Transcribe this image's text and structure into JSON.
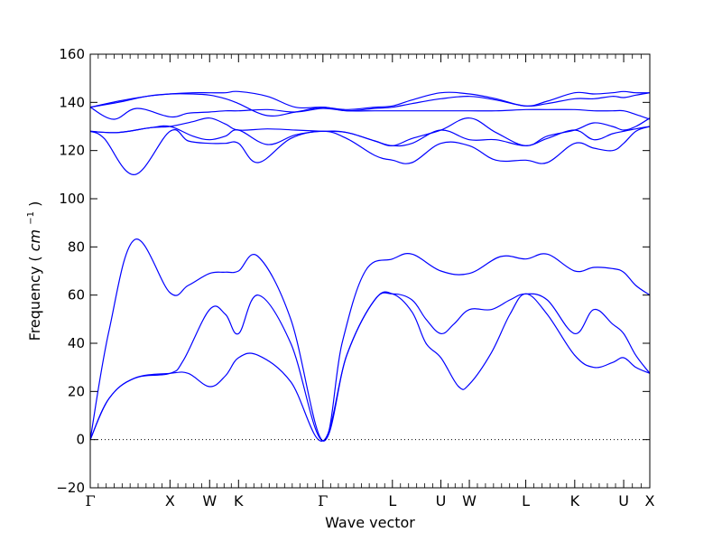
{
  "chart_data": {
    "type": "line",
    "title": "",
    "xlabel": "Wave vector",
    "ylabel": "Frequency",
    "ylabel_unit": "cm",
    "ylabel_exponent": "−1",
    "ylim": [
      -20,
      160
    ],
    "yticks": [
      -20,
      0,
      20,
      40,
      60,
      80,
      100,
      120,
      140,
      160
    ],
    "xlim": [
      0,
      12.0
    ],
    "high_symmetry_points": [
      {
        "label": "Γ",
        "x": 0
      },
      {
        "label": "X",
        "x": 1.71
      },
      {
        "label": "W",
        "x": 2.56
      },
      {
        "label": "K",
        "x": 3.18
      },
      {
        "label": "Γ",
        "x": 4.99
      },
      {
        "label": "L",
        "x": 6.48
      },
      {
        "label": "U",
        "x": 7.52
      },
      {
        "label": "W",
        "x": 8.13
      },
      {
        "label": "L",
        "x": 9.34
      },
      {
        "label": "K",
        "x": 10.39
      },
      {
        "label": "U",
        "x": 11.44
      },
      {
        "label": "X",
        "x": 12.0
      }
    ],
    "zero_line": true,
    "line_color": "#0000ff",
    "series": [
      {
        "x": [
          0,
          0.4,
          0.95,
          1.71,
          2.1,
          2.56,
          2.9,
          3.18,
          3.6,
          4.3,
          4.99,
          5.5,
          6.1,
          6.48,
          6.9,
          7.2,
          7.52,
          7.9,
          8.13,
          8.6,
          9.0,
          9.34,
          9.8,
          10.39,
          10.8,
          11.2,
          11.44,
          11.7,
          12.0
        ],
        "y": [
          0,
          17,
          25.5,
          27.5,
          27.5,
          22,
          26.5,
          34,
          35,
          24,
          -0.5,
          35,
          58,
          60.5,
          53,
          40,
          34,
          22,
          23,
          36,
          52,
          60.5,
          52,
          35,
          30,
          32,
          34,
          30,
          27.5
        ]
      },
      {
        "x": [
          0,
          0.4,
          0.95,
          1.71,
          2.0,
          2.56,
          2.9,
          3.18,
          3.6,
          4.3,
          4.99,
          5.5,
          6.1,
          6.48,
          6.9,
          7.2,
          7.52,
          7.8,
          8.13,
          8.6,
          9.0,
          9.34,
          9.8,
          10.39,
          10.8,
          11.2,
          11.44,
          11.7,
          12.0
        ],
        "y": [
          0,
          17,
          25.5,
          27.5,
          33,
          54,
          52,
          44,
          60,
          40,
          -0.5,
          35,
          58,
          60.5,
          58,
          50,
          44,
          48,
          54,
          54,
          58,
          60.5,
          58,
          44,
          54,
          48,
          44,
          35,
          27.5
        ]
      },
      {
        "x": [
          0,
          0.4,
          0.95,
          1.71,
          2.1,
          2.56,
          2.9,
          3.18,
          3.6,
          4.3,
          4.99,
          5.4,
          5.9,
          6.48,
          6.9,
          7.52,
          8.13,
          8.8,
          9.34,
          9.8,
          10.39,
          10.8,
          11.2,
          11.44,
          11.7,
          12.0
        ],
        "y": [
          0,
          45,
          83,
          61,
          64,
          69,
          69.5,
          70,
          76,
          50,
          -0.5,
          40,
          70,
          75,
          77,
          70,
          69,
          76,
          75,
          77,
          70,
          71.5,
          71,
          69.5,
          64,
          60
        ]
      },
      {
        "x": [
          0,
          0.3,
          0.95,
          1.71,
          2.1,
          2.56,
          2.9,
          3.18,
          3.6,
          4.3,
          4.99,
          5.5,
          6.1,
          6.48,
          6.9,
          7.52,
          8.13,
          8.7,
          9.34,
          9.8,
          10.39,
          10.8,
          11.2,
          11.44,
          11.7,
          12.0
        ],
        "y": [
          128,
          125,
          110,
          128,
          124,
          123,
          123,
          123,
          115,
          125,
          128,
          125,
          118,
          116,
          115,
          123,
          122,
          116,
          116,
          115,
          123,
          121,
          120,
          123,
          128,
          130
        ]
      },
      {
        "x": [
          0,
          0.6,
          1.3,
          1.71,
          2.2,
          2.56,
          2.9,
          3.18,
          3.8,
          4.4,
          4.99,
          5.5,
          6.1,
          6.48,
          6.9,
          7.52,
          8.13,
          8.7,
          9.34,
          9.8,
          10.39,
          10.8,
          11.2,
          11.44,
          11.7,
          12.0
        ],
        "y": [
          128,
          127.5,
          129.5,
          130,
          126,
          124.5,
          126,
          128.5,
          122.5,
          126.5,
          128,
          127.5,
          124,
          122,
          123,
          128.5,
          124.5,
          124.5,
          122,
          125,
          128.5,
          124.5,
          127,
          128,
          129,
          130
        ]
      },
      {
        "x": [
          0,
          0.6,
          1.3,
          1.71,
          2.2,
          2.56,
          2.9,
          3.18,
          3.8,
          4.4,
          4.99,
          5.5,
          6.1,
          6.48,
          6.9,
          7.52,
          8.13,
          8.7,
          9.34,
          9.8,
          10.39,
          10.8,
          11.2,
          11.44,
          11.7,
          12.0
        ],
        "y": [
          128,
          127.5,
          129.5,
          130,
          132,
          133.5,
          131,
          128.5,
          129,
          128.5,
          128,
          127.5,
          124,
          122,
          125,
          128.5,
          133.5,
          127.5,
          122,
          126,
          128.5,
          131.5,
          130,
          128.5,
          130,
          133.5
        ]
      },
      {
        "x": [
          0,
          0.5,
          1.0,
          1.71,
          2.1,
          2.56,
          2.9,
          3.18,
          3.8,
          4.4,
          4.99,
          5.5,
          6.1,
          6.48,
          6.9,
          7.52,
          8.13,
          8.7,
          9.34,
          9.8,
          10.39,
          10.8,
          11.2,
          11.44,
          11.7,
          12.0
        ],
        "y": [
          138,
          133,
          137.5,
          134,
          135.5,
          136,
          136.5,
          136.5,
          137,
          136,
          137.5,
          136.5,
          136.5,
          136.5,
          136.5,
          136.5,
          136.5,
          136.5,
          137,
          137,
          137,
          136.5,
          136.5,
          136.5,
          135,
          133
        ]
      },
      {
        "x": [
          0,
          0.6,
          1.2,
          1.71,
          2.2,
          2.56,
          2.9,
          3.18,
          3.8,
          4.4,
          4.99,
          5.5,
          6.1,
          6.48,
          6.9,
          7.52,
          8.13,
          8.7,
          9.34,
          9.8,
          10.39,
          10.8,
          11.2,
          11.44,
          11.7,
          12.0
        ],
        "y": [
          138,
          140,
          142.5,
          143.5,
          143.5,
          143,
          141.5,
          139.5,
          134.5,
          136,
          138,
          136.5,
          137.5,
          138,
          139.5,
          141.5,
          142.5,
          141,
          138.5,
          139.5,
          141.5,
          141.5,
          142.5,
          142,
          143,
          144
        ]
      },
      {
        "x": [
          0,
          0.6,
          1.2,
          1.71,
          2.2,
          2.56,
          2.9,
          3.18,
          3.8,
          4.4,
          4.99,
          5.5,
          6.1,
          6.48,
          6.9,
          7.52,
          8.13,
          8.7,
          9.34,
          9.8,
          10.39,
          10.8,
          11.2,
          11.44,
          11.7,
          12.0
        ],
        "y": [
          138,
          140.5,
          142.5,
          143.5,
          144,
          144,
          144,
          144.5,
          142.5,
          138,
          138,
          137,
          138,
          138.5,
          141,
          144,
          143.5,
          141.5,
          138.5,
          140.5,
          144,
          143.5,
          144,
          144.5,
          144,
          144
        ]
      }
    ]
  }
}
